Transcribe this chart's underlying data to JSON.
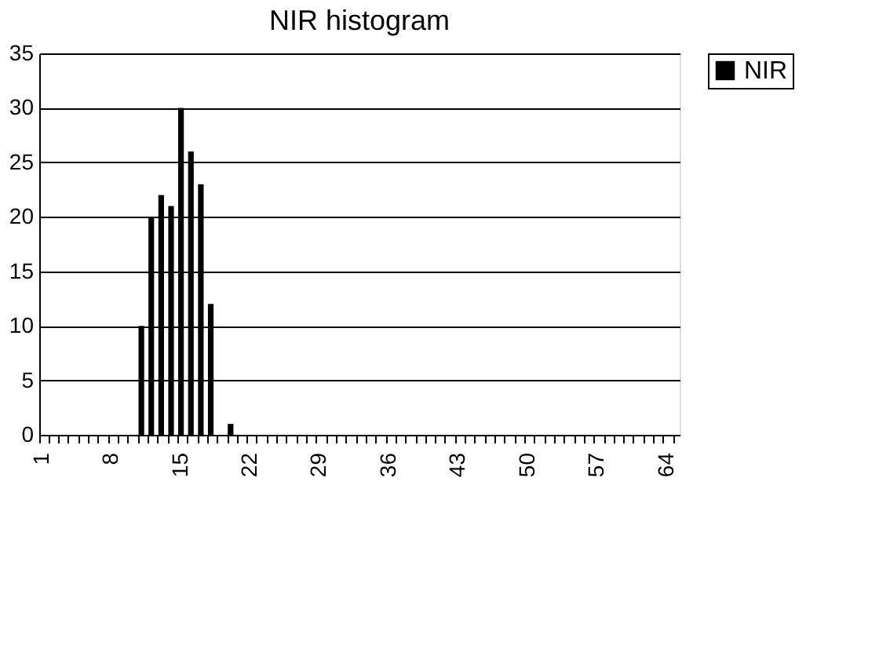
{
  "chart_data": {
    "type": "bar",
    "title": "NIR histogram",
    "categories": [
      "1",
      null,
      null,
      null,
      null,
      null,
      null,
      "8",
      null,
      null,
      null,
      null,
      null,
      null,
      "15",
      null,
      null,
      null,
      null,
      null,
      null,
      "22",
      null,
      null,
      null,
      null,
      null,
      null,
      "29",
      null,
      null,
      null,
      null,
      null,
      null,
      "36",
      null,
      null,
      null,
      null,
      null,
      null,
      "43",
      null,
      null,
      null,
      null,
      null,
      null,
      "50",
      null,
      null,
      null,
      null,
      null,
      null,
      "57",
      null,
      null,
      null,
      null,
      null,
      null,
      "64",
      null
    ],
    "series": [
      {
        "name": "NIR",
        "color": "#000000",
        "values": [
          0,
          0,
          0,
          0,
          0,
          0,
          0,
          0,
          0,
          0,
          10,
          20,
          22,
          21,
          30,
          26,
          23,
          12,
          0,
          1,
          0,
          0,
          0,
          0,
          0,
          0,
          0,
          0,
          0,
          0,
          0,
          0,
          0,
          0,
          0,
          0,
          0,
          0,
          0,
          0,
          0,
          0,
          0,
          0,
          0,
          0,
          0,
          0,
          0,
          0,
          0,
          0,
          0,
          0,
          0,
          0,
          0,
          0,
          0,
          0,
          0,
          0,
          0,
          0,
          0
        ]
      }
    ],
    "ylim": [
      0,
      35
    ],
    "yticks": [
      0,
      5,
      10,
      15,
      20,
      25,
      30,
      35
    ],
    "grid": "y",
    "legend": "right"
  }
}
